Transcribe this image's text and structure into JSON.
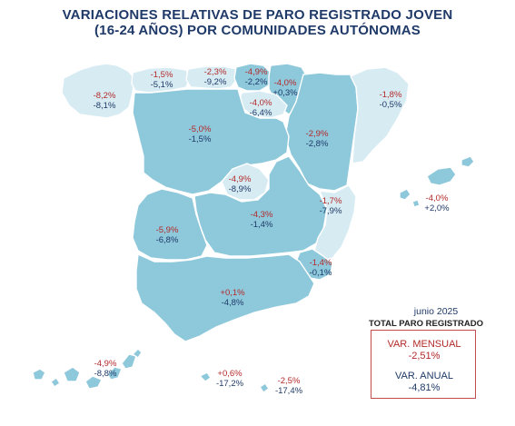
{
  "title": {
    "line1": "VARIACIONES RELATIVAS DE PARO REGISTRADO JOVEN",
    "line2": "(16-24 AÑOS) POR COMUNIDADES AUTÓNOMAS"
  },
  "colors": {
    "dark_fill": "#8ec8db",
    "light_fill": "#d7ebf3",
    "monthly_text": "#b32a2a",
    "annual_text": "#1f3a68"
  },
  "regions": {
    "galicia": {
      "mensual": "-8,2%",
      "anual": "-8,1%"
    },
    "asturias": {
      "mensual": "-1,5%",
      "anual": "-5,1%"
    },
    "cantabria": {
      "mensual": "-2,3%",
      "anual": "-9,2%"
    },
    "pais_vasco": {
      "mensual": "-4,9%",
      "anual": "-2,2%"
    },
    "navarra": {
      "mensual": "-4,0%",
      "anual": "+0,3%"
    },
    "la_rioja": {
      "mensual": "-4,0%",
      "anual": "-6,4%"
    },
    "aragon": {
      "mensual": "-2,9%",
      "anual": "-2,8%"
    },
    "cataluna": {
      "mensual": "-1,8%",
      "anual": "-0,5%"
    },
    "castilla_leon": {
      "mensual": "-5,0%",
      "anual": "-1,5%"
    },
    "madrid": {
      "mensual": "-4,9%",
      "anual": "-8,9%"
    },
    "castilla_la_mancha": {
      "mensual": "-4,3%",
      "anual": "-1,4%"
    },
    "comunidad_valenciana": {
      "mensual": "-1,7%",
      "anual": "-7,9%"
    },
    "baleares": {
      "mensual": "-4,0%",
      "anual": "+2,0%"
    },
    "extremadura": {
      "mensual": "-5,9%",
      "anual": "-6,8%"
    },
    "murcia": {
      "mensual": "-1,4%",
      "anual": "-0,1%"
    },
    "andalucia": {
      "mensual": "+0,1%",
      "anual": "-4,8%"
    },
    "canarias": {
      "mensual": "-4,9%",
      "anual": "-8,8%"
    },
    "ceuta": {
      "mensual": "+0,6%",
      "anual": "-17,2%"
    },
    "melilla": {
      "mensual": "-2,5%",
      "anual": "-17,4%"
    }
  },
  "legend": {
    "date": "junio 2025",
    "title": "TOTAL PARO REGISTRADO",
    "mensual_label": "VAR. MENSUAL",
    "mensual_value": "-2,51%",
    "anual_label": "VAR. ANUAL",
    "anual_value": "-4,81%"
  }
}
